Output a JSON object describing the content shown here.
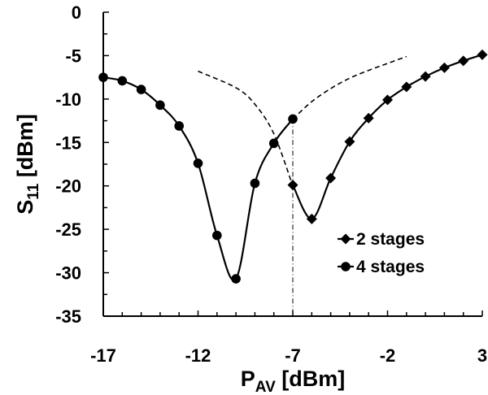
{
  "chart_data": {
    "type": "line",
    "title": "",
    "xlabel": {
      "main": "P",
      "sub": "AV",
      "unit": " [dBm]"
    },
    "ylabel": {
      "main": "S",
      "sub": "11",
      "unit": " [dBm]"
    },
    "xlim": [
      -17,
      3
    ],
    "ylim": [
      -35,
      0
    ],
    "xticks": [
      -17,
      -12,
      -7,
      -2,
      3
    ],
    "yticks": [
      0,
      -5,
      -10,
      -15,
      -20,
      -25,
      -30,
      -35
    ],
    "grid": false,
    "legend_position": "bottom-right",
    "series": [
      {
        "name": "2 stages",
        "marker": "diamond",
        "color": "#000000",
        "x": [
          -7,
          -6,
          -5,
          -4,
          -3,
          -2,
          -1,
          0,
          1,
          2,
          3
        ],
        "y": [
          -19.9,
          -23.8,
          -19.1,
          -14.9,
          -12.2,
          -10.1,
          -8.6,
          -7.4,
          -6.4,
          -5.6,
          -4.9
        ]
      },
      {
        "name": "4 stages",
        "marker": "circle",
        "color": "#000000",
        "x": [
          -17,
          -16,
          -15,
          -14,
          -13,
          -12,
          -11,
          -10,
          -9,
          -8,
          -7
        ],
        "y": [
          -7.5,
          -7.9,
          -8.9,
          -10.7,
          -13.1,
          -17.4,
          -25.7,
          -30.7,
          -19.7,
          -15.1,
          -12.3
        ]
      }
    ],
    "dashed_extensions": [
      {
        "x": [
          -12,
          -10,
          -9,
          -8,
          -7
        ],
        "y": [
          -6.8,
          -8.7,
          -10.6,
          -14,
          -20
        ]
      },
      {
        "x": [
          -7,
          -6,
          -5,
          -4,
          -3,
          -2,
          -1
        ],
        "y": [
          -12.3,
          -10.3,
          -8.8,
          -7.6,
          -6.7,
          -5.9,
          -5.1
        ]
      }
    ],
    "reference_line_x": -7
  }
}
